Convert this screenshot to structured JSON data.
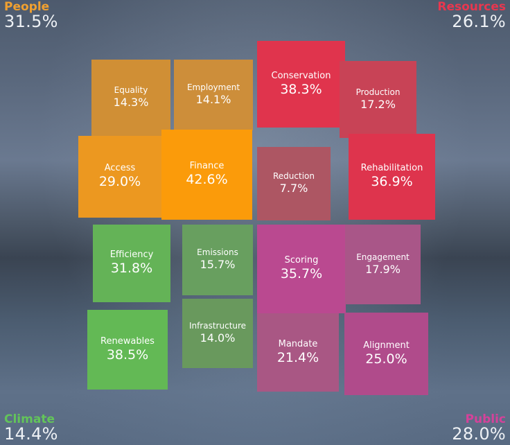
{
  "chart_data": {
    "type": "treemap",
    "title": "",
    "groups": [
      {
        "name": "People",
        "value": 31.5,
        "label": "31.5%",
        "color": "#f0a030",
        "items": [
          {
            "name": "Equality",
            "value": 14.3,
            "label": "14.3%"
          },
          {
            "name": "Employment",
            "value": 14.1,
            "label": "14.1%"
          },
          {
            "name": "Access",
            "value": 29.0,
            "label": "29.0%"
          },
          {
            "name": "Finance",
            "value": 42.6,
            "label": "42.6%"
          }
        ]
      },
      {
        "name": "Resources",
        "value": 26.1,
        "label": "26.1%",
        "color": "#e8374f",
        "items": [
          {
            "name": "Conservation",
            "value": 38.3,
            "label": "38.3%"
          },
          {
            "name": "Production",
            "value": 17.2,
            "label": "17.2%"
          },
          {
            "name": "Reduction",
            "value": 7.7,
            "label": "7.7%"
          },
          {
            "name": "Rehabilitation",
            "value": 36.9,
            "label": "36.9%"
          }
        ]
      },
      {
        "name": "Climate",
        "value": 14.4,
        "label": "14.4%",
        "color": "#63c45a",
        "items": [
          {
            "name": "Efficiency",
            "value": 31.8,
            "label": "31.8%"
          },
          {
            "name": "Emissions",
            "value": 15.7,
            "label": "15.7%"
          },
          {
            "name": "Renewables",
            "value": 38.5,
            "label": "38.5%"
          },
          {
            "name": "Infrastructure",
            "value": 14.0,
            "label": "14.0%"
          }
        ]
      },
      {
        "name": "Public",
        "value": 28.0,
        "label": "28.0%",
        "color": "#d4429a",
        "items": [
          {
            "name": "Scoring",
            "value": 35.7,
            "label": "35.7%"
          },
          {
            "name": "Engagement",
            "value": 17.9,
            "label": "17.9%"
          },
          {
            "name": "Mandate",
            "value": 21.4,
            "label": "21.4%"
          },
          {
            "name": "Alignment",
            "value": 25.0,
            "label": "25.0%"
          }
        ]
      }
    ]
  },
  "tile_colors": {
    "Equality": "#d08f35",
    "Employment": "#cd8e3a",
    "Access": "#ec9820",
    "Finance": "#fb9b0a",
    "Conservation": "#e0344d",
    "Production": "#c84356",
    "Reduction": "#ad5663",
    "Rehabilitation": "#de344d",
    "Efficiency": "#64b357",
    "Emissions": "#689f5f",
    "Renewables": "#63b955",
    "Infrastructure": "#69995d",
    "Scoring": "#ba4990",
    "Engagement": "#a95688",
    "Mandate": "#a95784",
    "Alignment": "#b04b8b"
  }
}
